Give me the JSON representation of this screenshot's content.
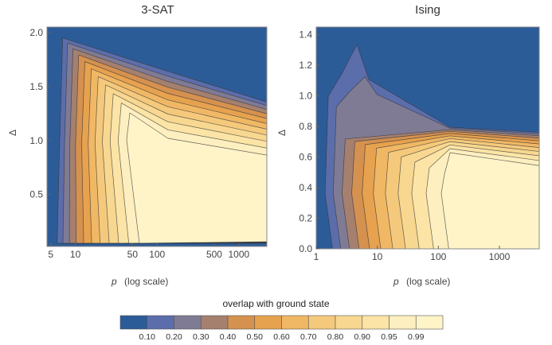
{
  "chart_data": [
    {
      "type": "heatmap",
      "subtype": "contour",
      "title": "3-SAT",
      "xlabel_var": "p",
      "xlabel_note": "(log scale)",
      "ylabel": "Δ",
      "xscale": "log",
      "xlim": [
        4.5,
        2200
      ],
      "ylim": [
        0.02,
        2.05
      ],
      "xticks": [
        5,
        10,
        50,
        100,
        500,
        1000
      ],
      "yticks": [
        0.5,
        1.0,
        1.5,
        2.0
      ],
      "ytick_labels": [
        "0.5",
        "1.0",
        "1.5",
        "2.0"
      ]
    },
    {
      "type": "heatmap",
      "subtype": "contour",
      "title": "Ising",
      "xlabel_var": "p",
      "xlabel_note": "(log scale)",
      "ylabel": "Δ",
      "xscale": "log",
      "xlim": [
        1,
        4500
      ],
      "ylim": [
        0.0,
        1.45
      ],
      "xticks": [
        1,
        10,
        100,
        1000
      ],
      "yticks": [
        0.0,
        0.2,
        0.4,
        0.6,
        0.8,
        1.0,
        1.2,
        1.4
      ],
      "ytick_labels": [
        "0.0",
        "0.2",
        "0.4",
        "0.6",
        "0.8",
        "1.0",
        "1.2",
        "1.4"
      ]
    }
  ],
  "colorbar": {
    "title": "overlap with ground state",
    "levels": [
      "0.10",
      "0.20",
      "0.30",
      "0.40",
      "0.50",
      "0.60",
      "0.70",
      "0.80",
      "0.90",
      "0.95",
      "0.99"
    ],
    "colors": [
      "#2c5c98",
      "#5c6dab",
      "#7f7b95",
      "#a5806e",
      "#d5914f",
      "#e7a24f",
      "#f0b865",
      "#f5c97c",
      "#f8d790",
      "#fbe4a5",
      "#fdefbf",
      "#fef4c8"
    ]
  }
}
